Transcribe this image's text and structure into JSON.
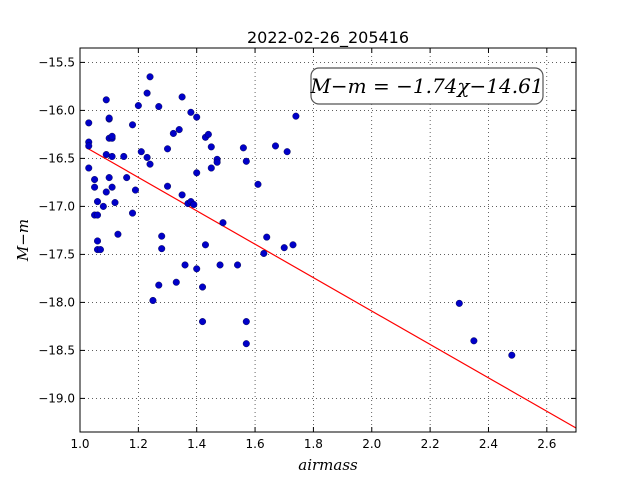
{
  "chart_data": {
    "type": "scatter",
    "title": "2022-02-26_205416",
    "xlabel": "airmass",
    "ylabel": "M−m",
    "xlim": [
      1.0,
      2.7
    ],
    "ylim": [
      -15.35,
      -19.35
    ],
    "y_inverted": true,
    "xticks": [
      1.0,
      1.2,
      1.4,
      1.6,
      1.8,
      2.0,
      2.2,
      2.4,
      2.6
    ],
    "xtick_labels": [
      "1.0",
      "1.2",
      "1.4",
      "1.6",
      "1.8",
      "2.0",
      "2.2",
      "2.4",
      "2.6"
    ],
    "yticks": [
      -15.5,
      -16.0,
      -16.5,
      -17.0,
      -17.5,
      -18.0,
      -18.5,
      -19.0
    ],
    "ytick_labels": [
      "−15.5",
      "−16.0",
      "−16.5",
      "−17.0",
      "−17.5",
      "−18.0",
      "−18.5",
      "−19.0"
    ],
    "grid": true,
    "annotation": "M−m = −1.74χ−14.61",
    "fit": {
      "slope": -1.74,
      "intercept": -14.61,
      "x_range": [
        1.02,
        2.7
      ],
      "color": "#ff0000"
    },
    "point_color": "#0000c8",
    "points": [
      [
        1.03,
        -16.13
      ],
      [
        1.03,
        -16.33
      ],
      [
        1.03,
        -16.37
      ],
      [
        1.03,
        -16.6
      ],
      [
        1.05,
        -16.72
      ],
      [
        1.05,
        -16.8
      ],
      [
        1.06,
        -16.95
      ],
      [
        1.05,
        -17.09
      ],
      [
        1.06,
        -17.09
      ],
      [
        1.06,
        -17.36
      ],
      [
        1.06,
        -17.45
      ],
      [
        1.07,
        -17.45
      ],
      [
        1.08,
        -17.0
      ],
      [
        1.09,
        -16.85
      ],
      [
        1.09,
        -16.46
      ],
      [
        1.09,
        -15.89
      ],
      [
        1.1,
        -16.09
      ],
      [
        1.1,
        -16.08
      ],
      [
        1.1,
        -16.29
      ],
      [
        1.11,
        -16.29
      ],
      [
        1.11,
        -16.27
      ],
      [
        1.11,
        -16.48
      ],
      [
        1.1,
        -16.7
      ],
      [
        1.11,
        -16.8
      ],
      [
        1.12,
        -16.96
      ],
      [
        1.13,
        -17.29
      ],
      [
        1.15,
        -16.48
      ],
      [
        1.16,
        -16.7
      ],
      [
        1.18,
        -16.15
      ],
      [
        1.18,
        -17.07
      ],
      [
        1.19,
        -16.83
      ],
      [
        1.2,
        -15.95
      ],
      [
        1.21,
        -16.43
      ],
      [
        1.23,
        -16.49
      ],
      [
        1.23,
        -15.82
      ],
      [
        1.24,
        -15.65
      ],
      [
        1.24,
        -16.56
      ],
      [
        1.25,
        -17.98
      ],
      [
        1.27,
        -15.96
      ],
      [
        1.27,
        -17.82
      ],
      [
        1.28,
        -17.31
      ],
      [
        1.28,
        -17.44
      ],
      [
        1.3,
        -16.4
      ],
      [
        1.3,
        -16.79
      ],
      [
        1.32,
        -16.24
      ],
      [
        1.33,
        -17.79
      ],
      [
        1.34,
        -16.2
      ],
      [
        1.35,
        -15.86
      ],
      [
        1.35,
        -16.88
      ],
      [
        1.36,
        -17.61
      ],
      [
        1.37,
        -16.97
      ],
      [
        1.38,
        -16.95
      ],
      [
        1.38,
        -16.02
      ],
      [
        1.39,
        -16.98
      ],
      [
        1.4,
        -16.07
      ],
      [
        1.4,
        -16.65
      ],
      [
        1.4,
        -17.65
      ],
      [
        1.42,
        -17.84
      ],
      [
        1.42,
        -18.2
      ],
      [
        1.43,
        -16.28
      ],
      [
        1.44,
        -16.25
      ],
      [
        1.43,
        -17.4
      ],
      [
        1.45,
        -16.6
      ],
      [
        1.45,
        -16.38
      ],
      [
        1.47,
        -16.51
      ],
      [
        1.47,
        -16.54
      ],
      [
        1.48,
        -17.61
      ],
      [
        1.49,
        -17.17
      ],
      [
        1.54,
        -17.61
      ],
      [
        1.56,
        -16.39
      ],
      [
        1.57,
        -16.53
      ],
      [
        1.57,
        -18.2
      ],
      [
        1.57,
        -18.43
      ],
      [
        1.61,
        -16.77
      ],
      [
        1.63,
        -17.49
      ],
      [
        1.64,
        -17.32
      ],
      [
        1.67,
        -16.37
      ],
      [
        1.7,
        -17.43
      ],
      [
        1.71,
        -16.43
      ],
      [
        1.73,
        -17.4
      ],
      [
        1.74,
        -16.06
      ],
      [
        2.3,
        -18.01
      ],
      [
        2.35,
        -18.4
      ],
      [
        2.48,
        -18.55
      ]
    ]
  }
}
